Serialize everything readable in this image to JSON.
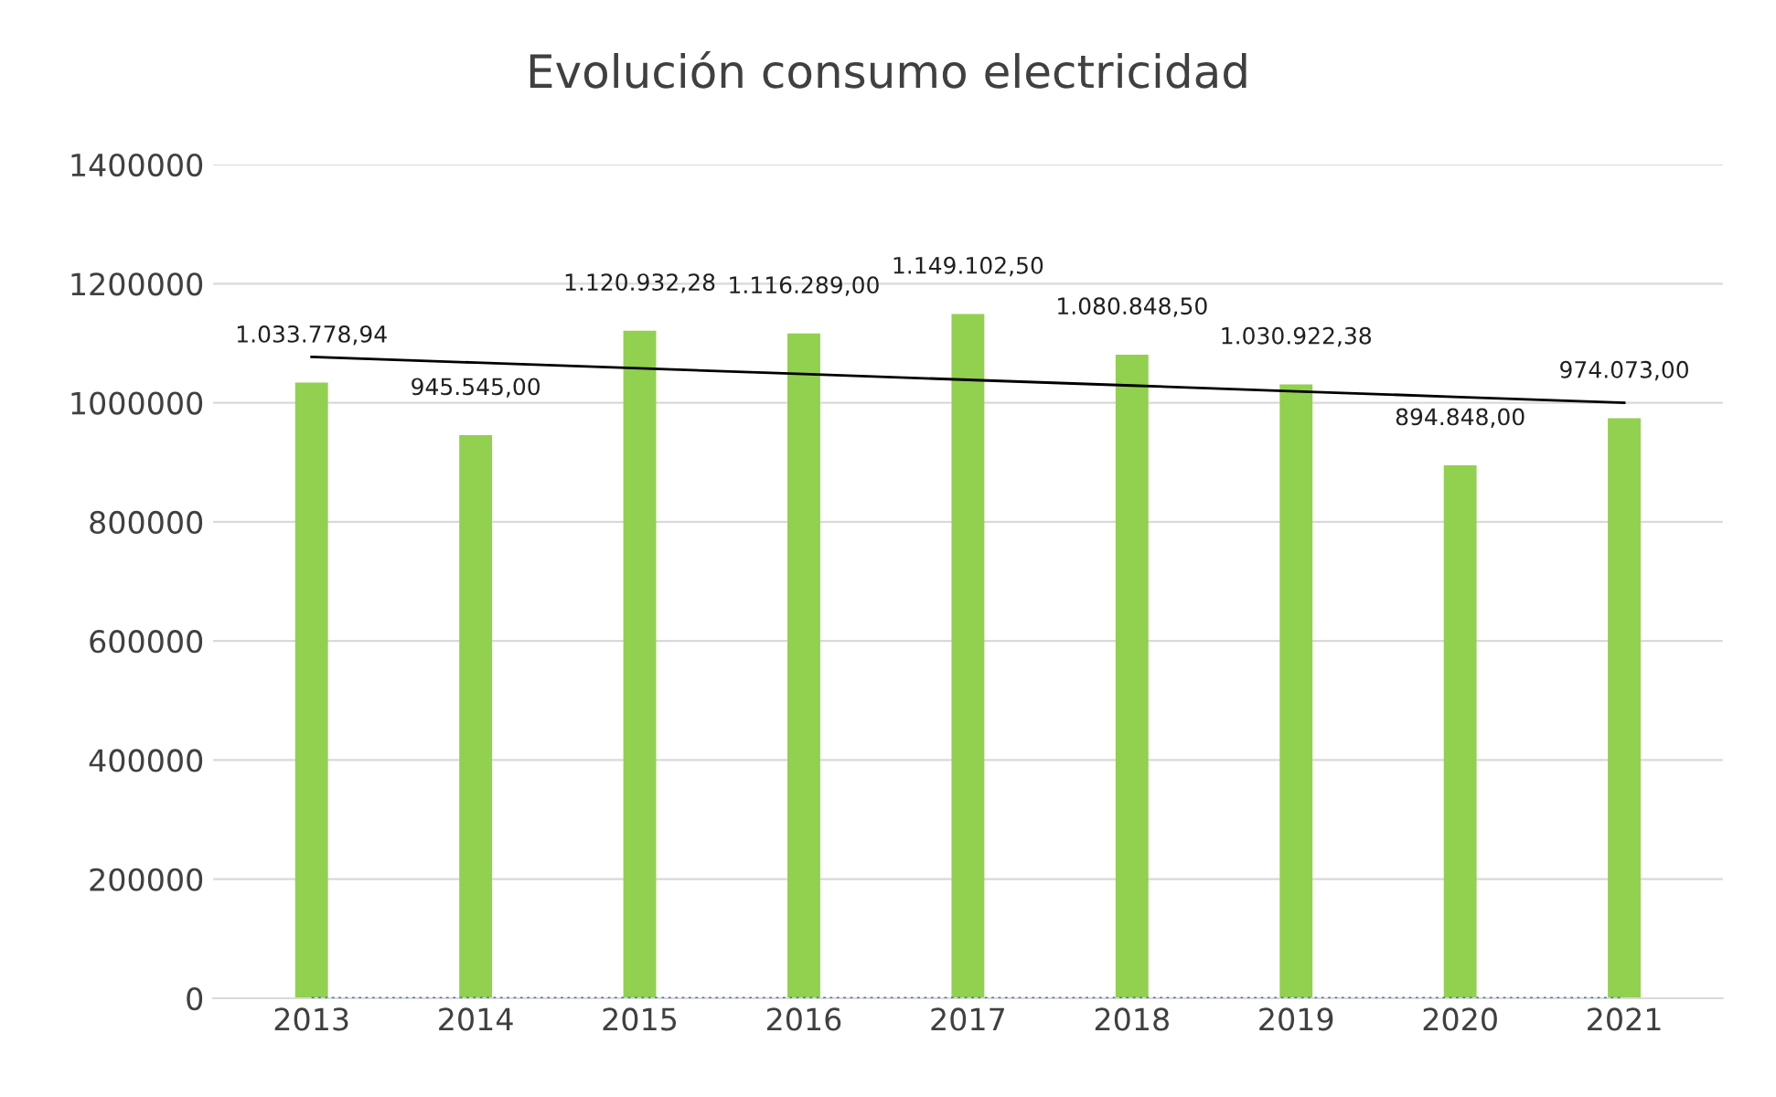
{
  "chart_data": {
    "type": "bar",
    "title": "Evolución consumo electricidad",
    "categories": [
      "2013",
      "2014",
      "2015",
      "2016",
      "2017",
      "2018",
      "2019",
      "2020",
      "2021"
    ],
    "series": [
      {
        "color": "#92d050",
        "values": [
          1033778.94,
          945545.0,
          1120932.28,
          1116289.0,
          1149102.5,
          1080848.5,
          1030922.38,
          894848.0,
          974073.0
        ],
        "value_labels": [
          "1.033.778,94",
          "945.545,00",
          "1.120.932,28",
          "1.116.289,00",
          "1.149.102,50",
          "1.080.848,50",
          "1.030.922,38",
          "894.848,00",
          "974.073,00"
        ]
      },
      {
        "type": "line",
        "color": "#000000",
        "line_style": "solid",
        "values": [
          1077000,
          1067375,
          1057750,
          1048125,
          1038500,
          1028875,
          1019250,
          1009625,
          1000000
        ]
      },
      {
        "type": "line",
        "color": "#4472c4",
        "line_style": "dotted",
        "values": [
          0,
          0,
          0,
          0,
          0,
          0,
          0,
          0,
          0
        ]
      }
    ],
    "ylim": [
      0,
      1400000
    ],
    "yticks": [
      0,
      200000,
      400000,
      600000,
      800000,
      1000000,
      1200000,
      1400000
    ],
    "grid": "y",
    "legend": false
  }
}
